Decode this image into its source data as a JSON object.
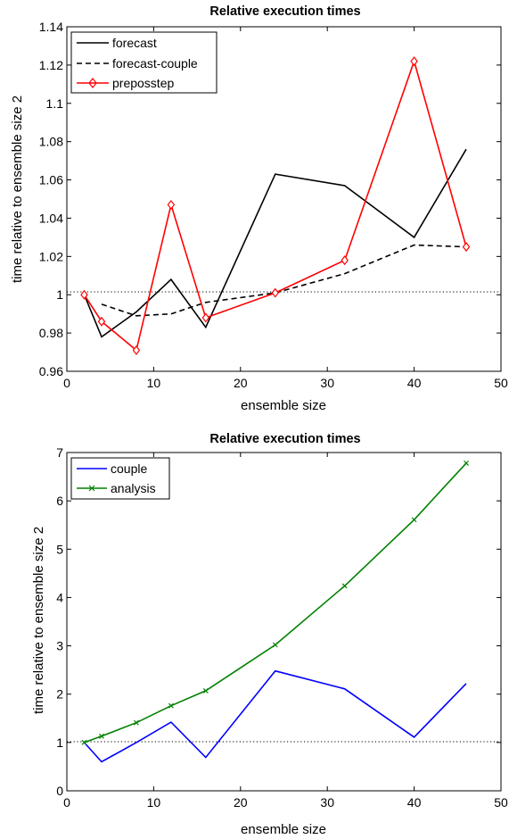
{
  "chart_data": [
    {
      "type": "line",
      "title": "Relative execution times",
      "xlabel": "ensemble size",
      "ylabel": "time relative to ensemble size 2",
      "xlim": [
        0,
        50
      ],
      "ylim": [
        0.96,
        1.14
      ],
      "xticks": [
        "0",
        "10",
        "20",
        "30",
        "40",
        "50"
      ],
      "yticks": [
        "0.96",
        "0.98",
        "1",
        "1.02",
        "1.04",
        "1.06",
        "1.08",
        "1.1",
        "1.12",
        "1.14"
      ],
      "reference_line": 1,
      "legend_position": "top-left",
      "series": [
        {
          "name": "forecast",
          "color": "#000000",
          "style": "solid",
          "marker": "none",
          "x": [
            2,
            4,
            8,
            12,
            16,
            24,
            32,
            40,
            46
          ],
          "y": [
            1.0,
            0.978,
            0.991,
            1.008,
            0.983,
            1.063,
            1.057,
            1.03,
            1.076
          ]
        },
        {
          "name": "forecast-couple",
          "color": "#000000",
          "style": "dashed",
          "marker": "none",
          "x": [
            4,
            8,
            12,
            16,
            24,
            32,
            40,
            46
          ],
          "y": [
            0.995,
            0.989,
            0.99,
            0.996,
            1.001,
            1.011,
            1.026,
            1.025
          ]
        },
        {
          "name": "preposstep",
          "color": "#ff0000",
          "style": "solid",
          "marker": "diamond",
          "x": [
            2,
            4,
            8,
            12,
            16,
            24,
            32,
            40,
            46
          ],
          "y": [
            1.0,
            0.986,
            0.971,
            1.047,
            0.988,
            1.001,
            1.018,
            1.122,
            1.025
          ]
        }
      ]
    },
    {
      "type": "line",
      "title": "Relative execution times",
      "xlabel": "ensemble size",
      "ylabel": "time relative to ensemble size 2",
      "xlim": [
        0,
        50
      ],
      "ylim": [
        0,
        7
      ],
      "xticks": [
        "0",
        "10",
        "20",
        "30",
        "40",
        "50"
      ],
      "yticks": [
        "0",
        "1",
        "2",
        "3",
        "4",
        "5",
        "6",
        "7"
      ],
      "reference_line": 1,
      "legend_position": "top-left",
      "series": [
        {
          "name": "couple",
          "color": "#0000ff",
          "style": "solid",
          "marker": "none",
          "x": [
            2,
            4,
            8,
            12,
            16,
            24,
            32,
            40,
            46
          ],
          "y": [
            1.0,
            0.6,
            1.0,
            1.42,
            0.69,
            2.48,
            2.11,
            1.11,
            2.22
          ]
        },
        {
          "name": "analysis",
          "color": "#008000",
          "style": "solid",
          "marker": "x",
          "x": [
            2,
            4,
            8,
            12,
            16,
            24,
            32,
            40,
            46
          ],
          "y": [
            1.0,
            1.13,
            1.41,
            1.76,
            2.07,
            3.02,
            4.24,
            5.61,
            6.78
          ]
        }
      ]
    }
  ]
}
